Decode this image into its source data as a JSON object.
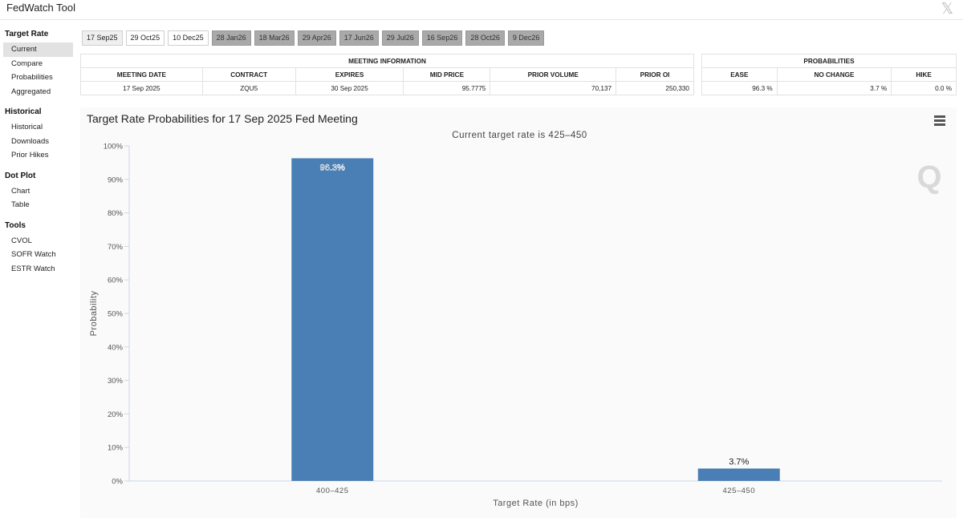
{
  "app": {
    "title": "FedWatch Tool",
    "close_label": "𝕏"
  },
  "sidebar": {
    "groups": [
      {
        "title": "Target Rate",
        "items": [
          "Current",
          "Compare",
          "Probabilities",
          "Aggregated"
        ]
      },
      {
        "title": "Historical",
        "items": [
          "Historical",
          "Downloads",
          "Prior Hikes"
        ]
      },
      {
        "title": "Dot Plot",
        "items": [
          "Chart",
          "Table"
        ]
      },
      {
        "title": "Tools",
        "items": [
          "CVOL",
          "SOFR Watch",
          "ESTR Watch"
        ]
      }
    ],
    "active_item": "Current"
  },
  "date_tabs": [
    "17 Sep25",
    "29 Oct25",
    "10 Dec25",
    "28 Jan26",
    "18 Mar26",
    "29 Apr26",
    "17 Jun26",
    "29 Jul26",
    "16 Sep26",
    "28 Oct26",
    "9 Dec26"
  ],
  "meeting_info": {
    "title": "MEETING INFORMATION",
    "headers": [
      "MEETING DATE",
      "CONTRACT",
      "EXPIRES",
      "MID PRICE",
      "PRIOR VOLUME",
      "PRIOR OI"
    ],
    "row": [
      "17 Sep 2025",
      "ZQU5",
      "30 Sep 2025",
      "95.7775",
      "70,137",
      "250,330"
    ]
  },
  "probabilities": {
    "title": "PROBABILITIES",
    "headers": [
      "EASE",
      "NO CHANGE",
      "HIKE"
    ],
    "row": [
      "96.3 %",
      "3.7 %",
      "0.0 %"
    ]
  },
  "colors": {
    "bar": "#4a7fb5",
    "future_tab": "#a9a9a9"
  },
  "chart_data": {
    "type": "bar",
    "title": "Target Rate Probabilities for 17 Sep 2025 Fed Meeting",
    "subtitle": "Current target rate is 425–450",
    "xlabel": "Target Rate (in bps)",
    "ylabel": "Probability",
    "categories": [
      "400–425",
      "425–450"
    ],
    "values": [
      96.3,
      3.7
    ],
    "data_labels": [
      "96.3%",
      "3.7%"
    ],
    "ylim": [
      0,
      100
    ],
    "yticks": [
      0,
      10,
      20,
      30,
      40,
      50,
      60,
      70,
      80,
      90,
      100
    ],
    "ytick_suffix": "%",
    "grid": false,
    "legend": "none"
  }
}
